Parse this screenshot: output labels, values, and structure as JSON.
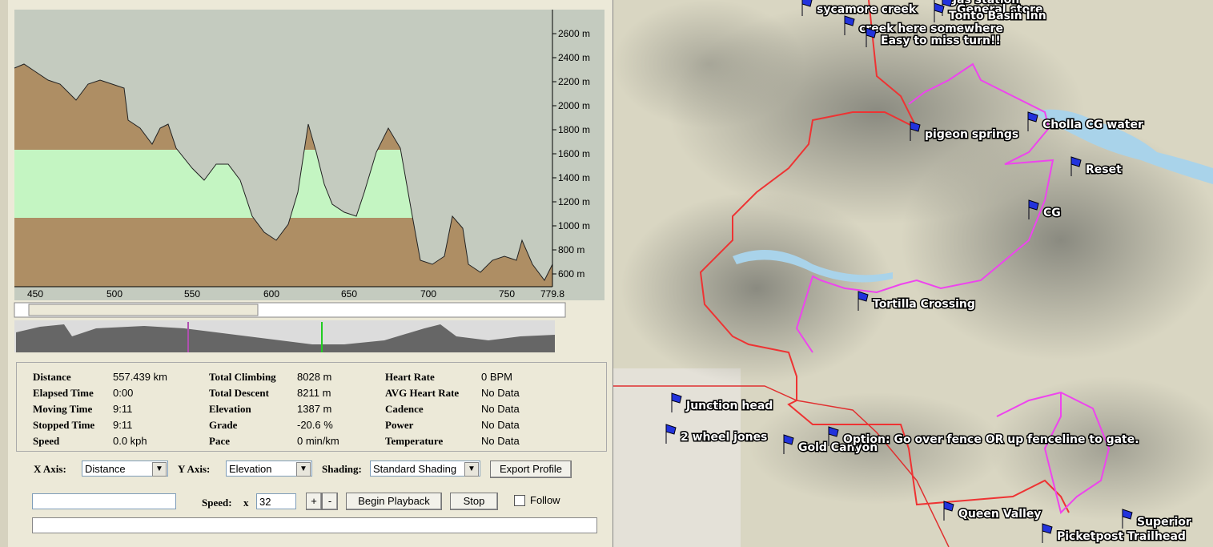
{
  "profile": {
    "yticks": [
      "2600 m",
      "2400 m",
      "2200 m",
      "2000 m",
      "1800 m",
      "1600 m",
      "1400 m",
      "1200 m",
      "1000 m",
      "800 m",
      "600 m"
    ],
    "xticks": [
      "450",
      "500",
      "550",
      "600",
      "650",
      "700",
      "750",
      "779.8"
    ]
  },
  "stats": [
    [
      [
        "Distance",
        "557.439 km"
      ],
      [
        "Total Climbing",
        "8028 m"
      ],
      [
        "Heart Rate",
        "0 BPM"
      ]
    ],
    [
      [
        "Elapsed Time",
        "0:00"
      ],
      [
        "Total Descent",
        "8211 m"
      ],
      [
        "AVG Heart Rate",
        "No Data"
      ]
    ],
    [
      [
        "Moving Time",
        "9:11"
      ],
      [
        "Elevation",
        "1387 m"
      ],
      [
        "Cadence",
        "No Data"
      ]
    ],
    [
      [
        "Stopped Time",
        "9:11"
      ],
      [
        "Grade",
        "-20.6 %"
      ],
      [
        "Power",
        "No Data"
      ]
    ],
    [
      [
        "Speed",
        "0.0 kph"
      ],
      [
        "Pace",
        "0 min/km"
      ],
      [
        "Temperature",
        "No Data"
      ]
    ]
  ],
  "controls": {
    "x_axis_label": "X Axis:",
    "x_axis_value": "Distance",
    "y_axis_label": "Y Axis:",
    "y_axis_value": "Elevation",
    "shading_label": "Shading:",
    "shading_value": "Standard Shading",
    "export": "Export Profile",
    "speed_label": "Speed:",
    "speed_x": "x",
    "speed_value": "32",
    "plus": "+",
    "minus": "-",
    "begin": "Begin Playback",
    "stop": "Stop",
    "follow": "Follow"
  },
  "map_labels": [
    "sycamore creek",
    "gas station",
    "General store",
    "Tonto Basin Inn",
    "creek here somewhere",
    "Easy to miss turn!!",
    "pigeon springs",
    "Cholla CG water",
    "Reset",
    "CG",
    "Tortilla Crossing",
    "Junction head",
    "2 wheel jones",
    "Gold Canyon",
    "Option: Go over fence OR up fenceline to gate.",
    "Queen Valley",
    "Superior",
    "Picketpost Trailhead"
  ]
}
